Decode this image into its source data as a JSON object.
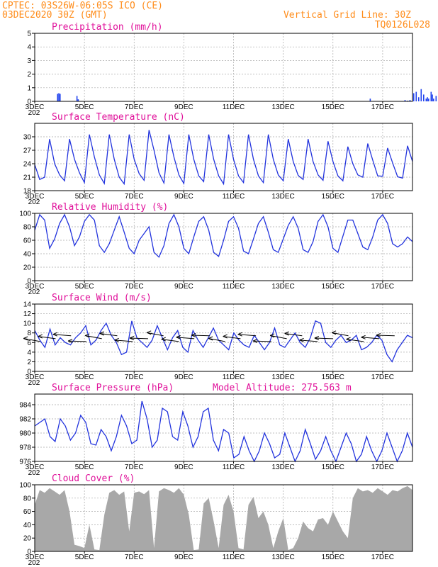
{
  "header": {
    "line1": "CPTEC:  03S26W-06:05S  ICO (CE)",
    "line2": "03DEC2020 30Z (GMT)",
    "grid_note": "Vertical Grid Line: 30Z",
    "code": "TQ0126L028"
  },
  "colors": {
    "header": "#ff8c1a",
    "title": "#e0109a",
    "line": "#2233dd",
    "bar": "#2244ee",
    "cloud": "#a8a8a8"
  },
  "x_ticks": [
    "3DEC",
    "5DEC",
    "7DEC",
    "9DEC",
    "11DEC",
    "13DEC",
    "15DEC",
    "17DEC"
  ],
  "x_year_stub": "202",
  "panels": [
    {
      "id": "precip",
      "title": "Precipitation (mm/h)",
      "ylim": [
        0,
        5
      ],
      "yticks": [
        "0",
        "1",
        "2",
        "3",
        "4",
        "5"
      ]
    },
    {
      "id": "temp",
      "title": "Surface Temperature (nC)",
      "ylim": [
        18,
        33
      ],
      "yticks": [
        "18",
        "21",
        "24",
        "27",
        "30"
      ]
    },
    {
      "id": "rh",
      "title": "Relative Humidity (%)",
      "ylim": [
        0,
        100
      ],
      "yticks": [
        "0",
        "20",
        "40",
        "60",
        "80",
        "100"
      ]
    },
    {
      "id": "wind",
      "title": "Surface Wind (m/s)",
      "ylim": [
        0,
        14
      ],
      "yticks": [
        "0",
        "2",
        "4",
        "6",
        "8",
        "10",
        "12",
        "14"
      ]
    },
    {
      "id": "press",
      "title": "Surface Pressure (hPa)",
      "ylim": [
        976,
        985.5
      ],
      "yticks": [
        "976",
        "978",
        "980",
        "982",
        "984"
      ],
      "extra": "Model Altitude: 275.563 m"
    },
    {
      "id": "cloud",
      "title": "Cloud Cover (%)",
      "ylim": [
        0,
        100
      ],
      "yticks": [
        "0",
        "20",
        "40",
        "60",
        "80",
        "100"
      ]
    }
  ],
  "chart_data": [
    {
      "type": "bar",
      "title": "Precipitation (mm/h)",
      "x_range_days": [
        0,
        15.2
      ],
      "x": [
        0.92,
        0.97,
        1.02,
        1.7,
        1.75,
        13.5,
        14.9,
        15.0,
        15.1,
        15.25,
        15.35,
        15.45,
        15.55,
        15.65,
        15.75,
        15.8,
        15.85,
        15.95,
        16.0,
        16.05,
        16.15,
        16.25,
        16.35,
        16.45,
        16.55,
        16.65,
        16.75,
        16.85,
        16.95
      ],
      "values": [
        0.55,
        0.6,
        0.55,
        0.4,
        0.15,
        0.2,
        0.1,
        0.05,
        0.1,
        0.6,
        0.7,
        0.3,
        0.9,
        0.5,
        0.2,
        0.3,
        0.2,
        0.7,
        0.5,
        0.2,
        0.4,
        0.3,
        0.2,
        0.2,
        0.9,
        0.6,
        1.2,
        0.6,
        0.3
      ],
      "ylim": [
        0,
        5
      ]
    },
    {
      "type": "line",
      "title": "Surface Temperature (nC)",
      "x_range_days": [
        0,
        15.2
      ],
      "series": [
        {
          "values": [
            23.8,
            20.5,
            21.0,
            29.5,
            24.0,
            21.5,
            20.2,
            29.5,
            25.0,
            22.0,
            19.8,
            30.5,
            25.5,
            21.5,
            19.6,
            30.5,
            25.0,
            21.0,
            19.5,
            30.5,
            25.0,
            21.8,
            20.3,
            31.5,
            27.0,
            22.0,
            19.7,
            30.5,
            25.5,
            21.5,
            19.6,
            30.5,
            25.0,
            21.3,
            20.0,
            30.5,
            25.0,
            21.3,
            19.5,
            30.5,
            25.0,
            21.3,
            19.8,
            30.5,
            25.0,
            21.3,
            19.8,
            30.5,
            25.0,
            21.5,
            20.2,
            29.5,
            24.5,
            21.4,
            20.5,
            29.5,
            24.5,
            21.5,
            20.3,
            29.0,
            24.5,
            21.3,
            20.2,
            27.8,
            24.0,
            21.5,
            21.0,
            28.5,
            24.8,
            21.3,
            21.2,
            27.5,
            24.2,
            21.1,
            20.8,
            28.0,
            24.5
          ]
        }
      ],
      "ylim": [
        18,
        33
      ]
    },
    {
      "type": "line",
      "title": "Relative Humidity (%)",
      "x_range_days": [
        0,
        15.2
      ],
      "series": [
        {
          "values": [
            75,
            98,
            90,
            48,
            62,
            85,
            98,
            80,
            52,
            65,
            88,
            98,
            90,
            52,
            42,
            55,
            75,
            95,
            72,
            48,
            40,
            60,
            70,
            80,
            42,
            35,
            52,
            85,
            98,
            80,
            48,
            40,
            65,
            88,
            95,
            75,
            42,
            36,
            60,
            88,
            95,
            78,
            44,
            40,
            62,
            85,
            95,
            72,
            46,
            42,
            62,
            82,
            95,
            78,
            46,
            42,
            58,
            88,
            98,
            80,
            48,
            42,
            66,
            90,
            90,
            70,
            50,
            46,
            65,
            90,
            98,
            85,
            55,
            50,
            55,
            65,
            58
          ]
        }
      ],
      "ylim": [
        0,
        100
      ]
    },
    {
      "type": "line",
      "title": "Surface Wind (m/s)",
      "x_range_days": [
        0,
        15.2
      ],
      "series": [
        {
          "values": [
            8.5,
            6.5,
            5.0,
            8.8,
            5.5,
            7.0,
            6.0,
            5.5,
            7.0,
            8.0,
            9.5,
            5.5,
            6.5,
            8.5,
            10.0,
            7.5,
            6.0,
            3.5,
            4.0,
            10.5,
            7.0,
            6.0,
            5.0,
            6.5,
            9.5,
            7.0,
            4.5,
            7.0,
            8.5,
            5.0,
            4.0,
            8.5,
            6.5,
            5.0,
            7.0,
            9.0,
            6.5,
            5.5,
            4.5,
            8.0,
            6.5,
            5.5,
            5.0,
            7.5,
            6.0,
            4.5,
            6.0,
            9.0,
            5.5,
            5.0,
            6.5,
            8.0,
            6.0,
            5.0,
            7.0,
            10.5,
            10.0,
            6.0,
            5.0,
            6.5,
            7.5,
            6.0,
            6.5,
            7.5,
            4.5,
            5.0,
            6.0,
            7.5,
            6.5,
            3.5,
            2.0,
            4.5,
            6.0,
            7.5,
            7.0
          ]
        }
      ],
      "ylim": [
        0,
        14
      ]
    },
    {
      "type": "line",
      "title": "Surface Pressure (hPa)",
      "x_range_days": [
        0,
        15.2
      ],
      "series": [
        {
          "values": [
            981.0,
            981.5,
            982.0,
            979.5,
            978.8,
            982.0,
            981.0,
            979.0,
            980.0,
            982.5,
            981.5,
            978.5,
            978.3,
            980.5,
            979.5,
            977.5,
            979.5,
            982.5,
            981.0,
            978.5,
            979.0,
            984.5,
            982.0,
            978.0,
            979.0,
            983.5,
            983.0,
            979.5,
            979.0,
            983.0,
            981.0,
            978.0,
            979.5,
            983.0,
            983.5,
            979.0,
            977.5,
            980.5,
            980.0,
            976.5,
            977.0,
            979.5,
            977.5,
            975.8,
            977.5,
            980.0,
            978.5,
            976.5,
            977.0,
            980.0,
            978.0,
            976.0,
            977.5,
            980.5,
            978.5,
            976.3,
            977.5,
            979.5,
            977.5,
            975.8,
            978.0,
            980.0,
            978.5,
            976.0,
            977.0,
            979.5,
            977.5,
            975.8,
            977.5,
            980.0,
            978.0,
            976.0,
            977.5,
            980.0,
            978.0
          ]
        }
      ],
      "ylim": [
        976,
        985.5
      ]
    },
    {
      "type": "area",
      "title": "Cloud Cover (%)",
      "x_range_days": [
        0,
        15.2
      ],
      "series": [
        {
          "values": [
            70,
            92,
            88,
            95,
            90,
            85,
            92,
            60,
            10,
            8,
            5,
            40,
            3,
            2,
            55,
            88,
            92,
            85,
            90,
            30,
            88,
            90,
            86,
            92,
            5,
            90,
            95,
            92,
            88,
            95,
            85,
            55,
            2,
            3,
            72,
            80,
            45,
            5,
            70,
            85,
            60,
            5,
            3,
            70,
            82,
            50,
            60,
            40,
            5,
            30,
            50,
            2,
            5,
            20,
            45,
            35,
            30,
            48,
            50,
            40,
            60,
            45,
            30,
            20,
            80,
            95,
            90,
            92,
            88,
            95,
            90,
            85,
            92,
            90,
            95,
            98,
            92
          ]
        }
      ],
      "ylim": [
        0,
        100
      ]
    }
  ]
}
